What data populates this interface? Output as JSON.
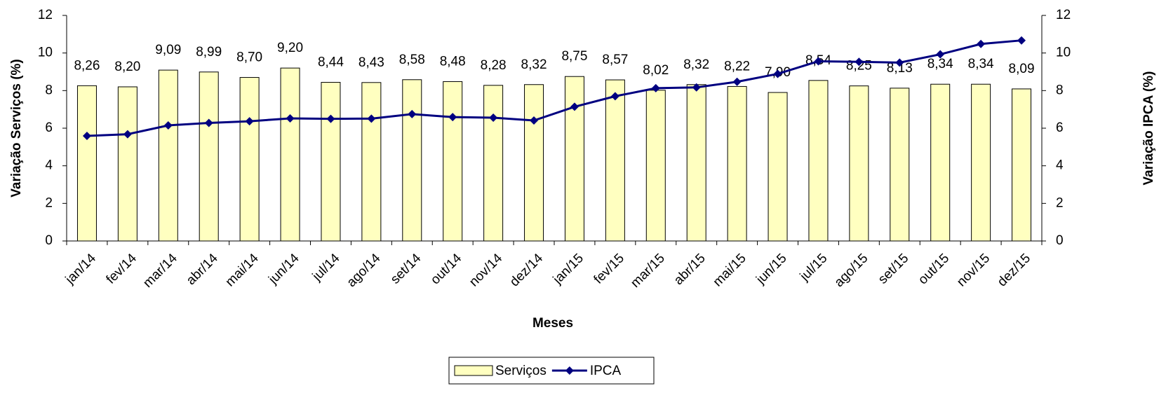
{
  "chart_data": {
    "type": "bar",
    "x_label": "Meses",
    "y_label": "Variação Serviços (%)",
    "y2_label": "Variação IPCA (%)",
    "categories": [
      "jan/14",
      "fev/14",
      "mar/14",
      "abr/14",
      "mai/14",
      "jun/14",
      "jul/14",
      "ago/14",
      "set/14",
      "out/14",
      "nov/14",
      "dez/14",
      "jan/15",
      "fev/15",
      "mar/15",
      "abr/15",
      "mai/15",
      "jun/15",
      "jul/15",
      "ago/15",
      "set/15",
      "out/15",
      "nov/15",
      "dez/15"
    ],
    "series": [
      {
        "name": "Serviços",
        "type": "bar",
        "color": "#ffffc0",
        "values": [
          8.26,
          8.2,
          9.09,
          8.99,
          8.7,
          9.2,
          8.44,
          8.43,
          8.58,
          8.48,
          8.28,
          8.32,
          8.75,
          8.57,
          8.02,
          8.32,
          8.22,
          7.9,
          8.54,
          8.25,
          8.13,
          8.34,
          8.34,
          8.09
        ],
        "value_labels": [
          "8,26",
          "8,20",
          "9,09",
          "8,99",
          "8,70",
          "9,20",
          "8,44",
          "8,43",
          "8,58",
          "8,48",
          "8,28",
          "8,32",
          "8,75",
          "8,57",
          "8,02",
          "8,32",
          "8,22",
          "7,90",
          "8,54",
          "8,25",
          "8,13",
          "8,34",
          "8,34",
          "8,09"
        ]
      },
      {
        "name": "IPCA",
        "type": "line",
        "axis": "y2",
        "color": "#000080",
        "values": [
          5.59,
          5.68,
          6.15,
          6.28,
          6.37,
          6.52,
          6.5,
          6.51,
          6.75,
          6.59,
          6.56,
          6.41,
          7.14,
          7.7,
          8.13,
          8.17,
          8.47,
          8.89,
          9.56,
          9.53,
          9.49,
          9.93,
          10.48,
          10.67
        ]
      }
    ],
    "ylim": [
      0,
      12
    ],
    "yticks": [
      0,
      2,
      4,
      6,
      8,
      10,
      12
    ],
    "y2lim": [
      0,
      12
    ],
    "y2ticks": [
      0,
      2,
      4,
      6,
      8,
      10,
      12
    ],
    "legend": "bottom",
    "grid": false
  }
}
